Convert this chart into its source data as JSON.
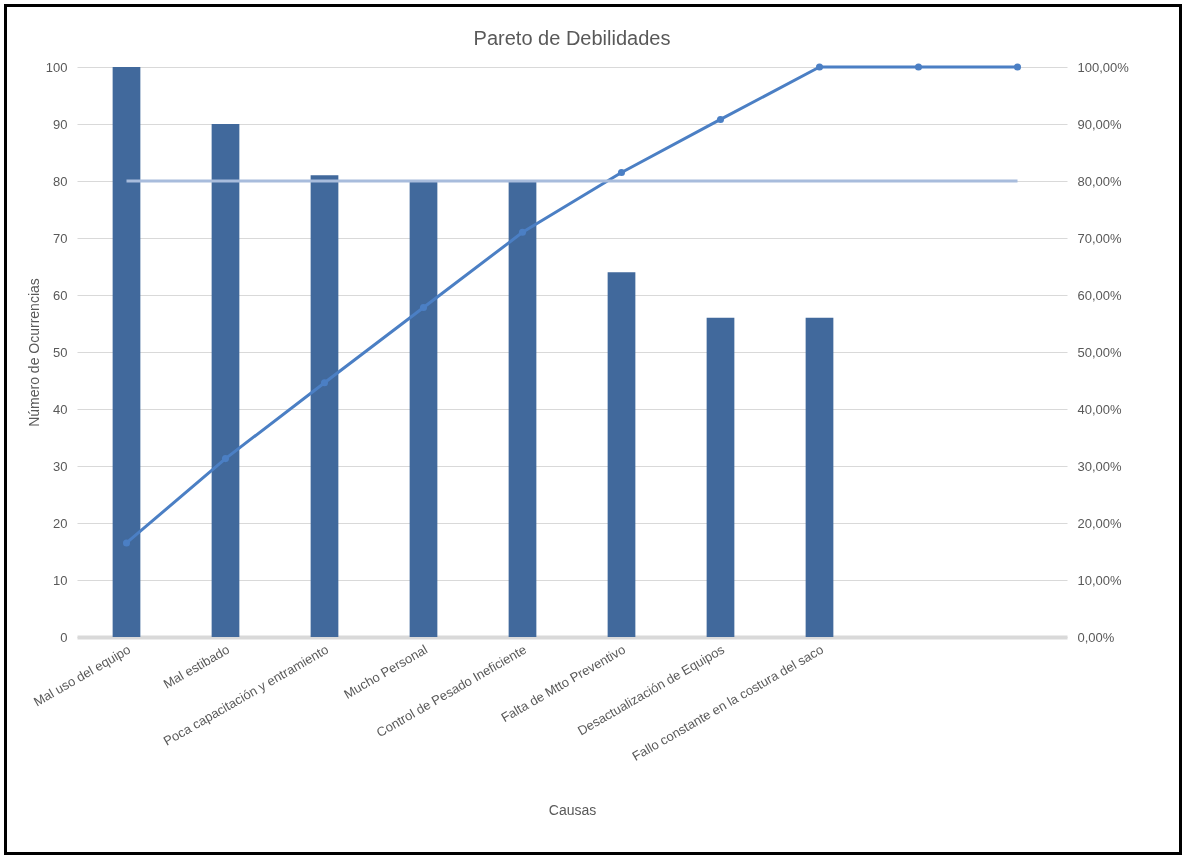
{
  "chart_data": {
    "type": "bar",
    "title": "Pareto de Debilidades",
    "xlabel": "Causas",
    "ylabel": "Número de Ocurrencias",
    "categories": [
      "Mal uso del equipo",
      "Mal estibado",
      "Poca capacitación y entramiento",
      "Mucho Personal",
      "Control de Pesado Ineficiente",
      "Falta de Mtto Preventivo",
      "Desactualización de Equipos",
      "Fallo constante en la costura del saco",
      null,
      null
    ],
    "series": [
      {
        "color": "#41699c",
        "values": [
          100,
          90,
          81,
          80,
          80,
          64,
          56,
          56,
          null,
          null
        ]
      },
      {
        "type": "line",
        "axis": "y2",
        "color": "#4b7fc4",
        "marker": "circle",
        "values": [
          16.5,
          31.3,
          44.6,
          57.8,
          71.0,
          81.5,
          90.8,
          100,
          100,
          100
        ]
      },
      {
        "type": "line",
        "axis": "y2",
        "color": "#a8bcdc",
        "marker": "none",
        "values": [
          80,
          80,
          80,
          80,
          80,
          80,
          80,
          80,
          80,
          80
        ]
      }
    ],
    "ylim": [
      0,
      100
    ],
    "yticks": [
      0,
      10,
      20,
      30,
      40,
      50,
      60,
      70,
      80,
      90,
      100
    ],
    "y2lim": [
      0,
      100
    ],
    "y2ticks": [
      {
        "value": 0,
        "label": "0,00%"
      },
      {
        "value": 10,
        "label": "10,00%"
      },
      {
        "value": 20,
        "label": "20,00%"
      },
      {
        "value": 30,
        "label": "30,00%"
      },
      {
        "value": 40,
        "label": "40,00%"
      },
      {
        "value": 50,
        "label": "50,00%"
      },
      {
        "value": 60,
        "label": "60,00%"
      },
      {
        "value": 70,
        "label": "70,00%"
      },
      {
        "value": 80,
        "label": "80,00%"
      },
      {
        "value": 90,
        "label": "90,00%"
      },
      {
        "value": 100,
        "label": "100,00%"
      }
    ],
    "grid": "y"
  }
}
